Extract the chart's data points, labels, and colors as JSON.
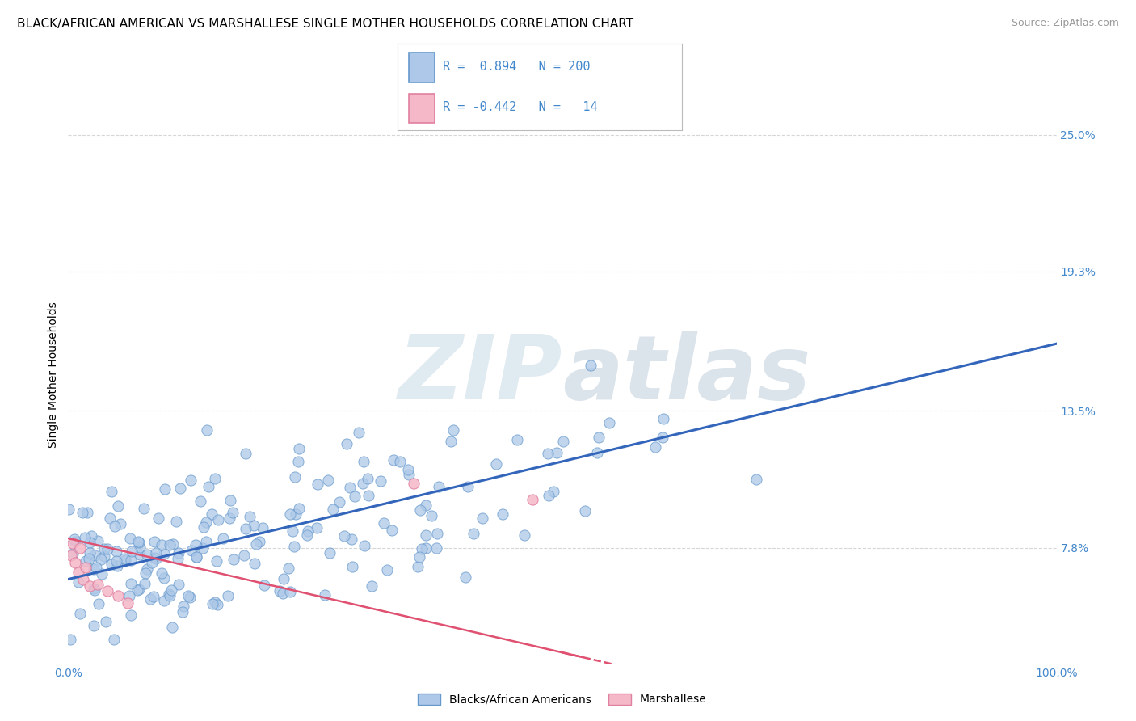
{
  "title": "BLACK/AFRICAN AMERICAN VS MARSHALLESE SINGLE MOTHER HOUSEHOLDS CORRELATION CHART",
  "source": "Source: ZipAtlas.com",
  "ylabel": "Single Mother Households",
  "ytick_labels": [
    "7.8%",
    "13.5%",
    "19.3%",
    "25.0%"
  ],
  "ytick_values": [
    0.078,
    0.135,
    0.193,
    0.25
  ],
  "xtick_labels": [
    "0.0%",
    "100.0%"
  ],
  "xlim": [
    0.0,
    1.0
  ],
  "ylim": [
    0.03,
    0.27
  ],
  "blue_color": "#adc8e8",
  "blue_edge": "#6699cc",
  "pink_color": "#f5b8c8",
  "pink_edge": "#e080a0",
  "line_blue": "#3366bb",
  "line_pink": "#e05070",
  "legend_R_blue": "0.894",
  "legend_N_blue": "200",
  "legend_R_pink": "-0.442",
  "legend_N_pink": "14",
  "watermark": "ZIPAtlas",
  "watermark_color": "#ccdde8",
  "blue_series_label": "Blacks/African Americans",
  "pink_series_label": "Marshallese",
  "blue_line_intercept": 0.065,
  "blue_line_slope": 0.098,
  "pink_line_intercept": 0.082,
  "pink_line_slope": -0.095,
  "title_fontsize": 11,
  "axis_label_fontsize": 10,
  "tick_fontsize": 10,
  "source_fontsize": 9,
  "grid_color": "#cccccc",
  "tick_color": "#4488cc"
}
